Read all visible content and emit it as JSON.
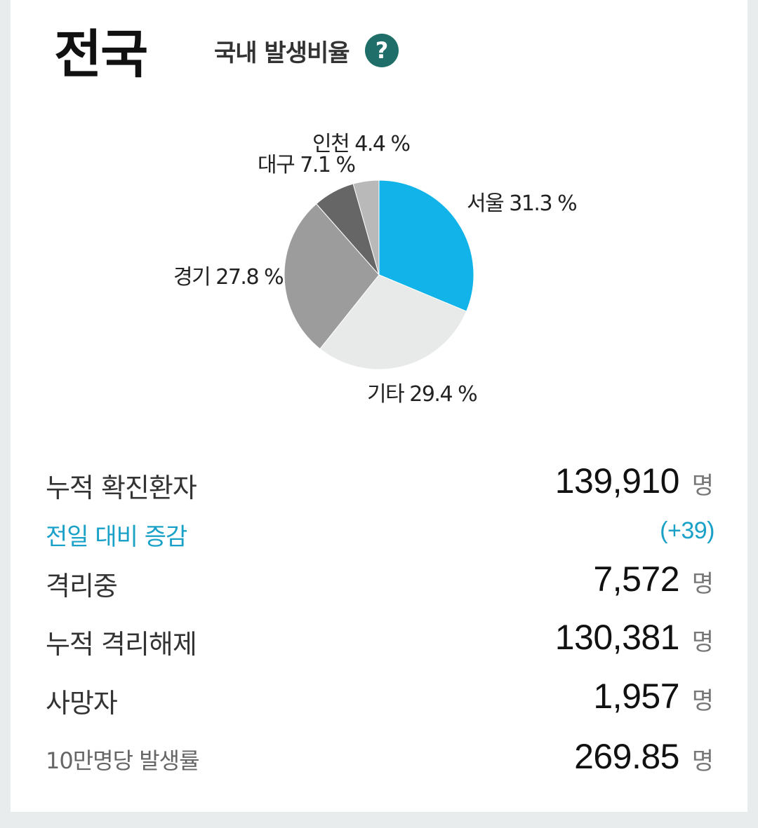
{
  "header": {
    "region": "전국",
    "ratio_label": "국내 발생비율",
    "help_icon": "?"
  },
  "chart_data": {
    "type": "pie",
    "slices": [
      {
        "name": "서울",
        "label": "서울 31.3 %",
        "value": 31.3,
        "color": "#12b3e8"
      },
      {
        "name": "기타",
        "label": "기타 29.4 %",
        "value": 29.4,
        "color": "#e8eaea"
      },
      {
        "name": "경기",
        "label": "경기 27.8 %",
        "value": 27.8,
        "color": "#9c9c9c"
      },
      {
        "name": "대구",
        "label": "대구 7.1 %",
        "value": 7.1,
        "color": "#666666"
      },
      {
        "name": "인천",
        "label": "인천 4.4 %",
        "value": 4.4,
        "color": "#b9b9b9"
      }
    ]
  },
  "stats": {
    "confirmed": {
      "label": "누적 확진환자",
      "value": "139,910",
      "unit": "명"
    },
    "diff": {
      "label": "전일 대비 증감",
      "value": "(+39)"
    },
    "isolated": {
      "label": "격리중",
      "value": "7,572",
      "unit": "명"
    },
    "released": {
      "label": "누적 격리해제",
      "value": "130,381",
      "unit": "명"
    },
    "deaths": {
      "label": "사망자",
      "value": "1,957",
      "unit": "명"
    },
    "per100k": {
      "label": "10만명당 발생률",
      "value": "269.85",
      "unit": "명"
    }
  }
}
